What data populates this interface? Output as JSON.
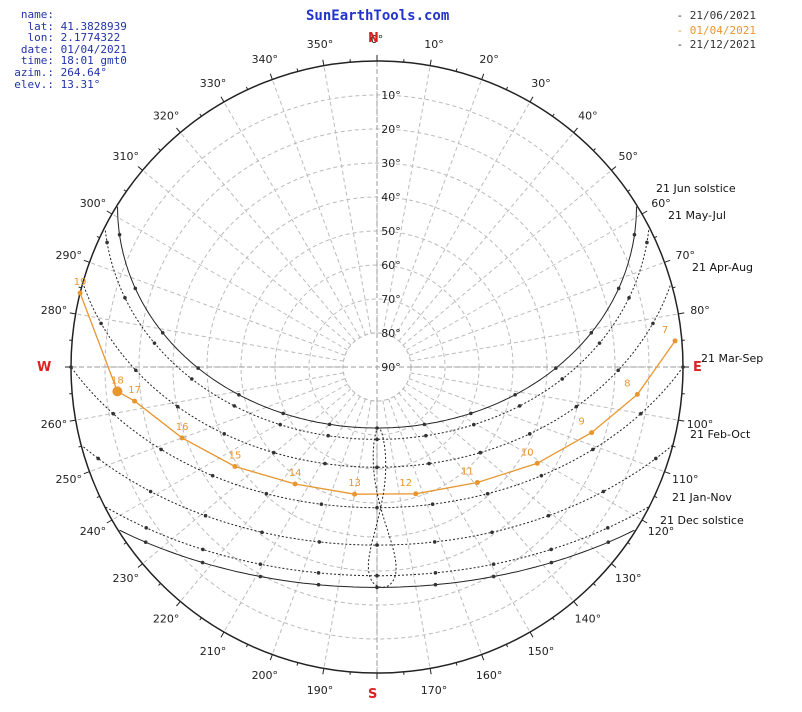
{
  "site_title": "SunEarthTools.com",
  "info": [
    {
      "key": "name:",
      "value": ""
    },
    {
      "key": "lat:",
      "value": "41.3828939"
    },
    {
      "key": "lon:",
      "value": "2.1774322"
    },
    {
      "key": "date:",
      "value": "01/04/2021"
    },
    {
      "key": "time:",
      "value": "18:01 gmt0"
    },
    {
      "key": "azim.:",
      "value": "264.64°"
    },
    {
      "key": "elev.:",
      "value": "13.31°"
    }
  ],
  "legend": [
    {
      "label": "- 21/06/2021",
      "color": "#333333"
    },
    {
      "label": "- 01/04/2021",
      "color": "#e8962e"
    },
    {
      "label": "- 21/12/2021",
      "color": "#333333"
    }
  ],
  "colors": {
    "accent": "#e8962e",
    "cardinal": "#dd2222",
    "grid": "#bbbbbb",
    "line": "#333333"
  },
  "chart_data": {
    "type": "line",
    "projection": "polar sun path (azimuth 0-360°, elevation 0-90°)",
    "cardinal_labels": {
      "N": "N",
      "E": "E",
      "S": "S",
      "W": "W"
    },
    "azimuth_ticks": [
      0,
      10,
      20,
      30,
      40,
      50,
      60,
      70,
      80,
      100,
      110,
      120,
      130,
      140,
      150,
      160,
      170,
      190,
      200,
      210,
      220,
      230,
      240,
      250,
      260,
      280,
      290,
      300,
      310,
      320,
      330,
      340,
      350
    ],
    "elevation_ticks": [
      10,
      20,
      30,
      40,
      50,
      60,
      70,
      80,
      90
    ],
    "day_labels": [
      "21 Jun  solstice",
      "21 May-Jul",
      "21 Apr-Aug",
      "21 Mar-Sep",
      "21 Feb-Oct",
      "21 Jan-Nov",
      "21 Dec  solstice"
    ],
    "series": [
      {
        "date": "21/06/2021",
        "decl": 23.44,
        "style": "solid"
      },
      {
        "date": "21 May-Jul",
        "decl": 20.1,
        "style": "dotted"
      },
      {
        "date": "21 Apr-Aug",
        "decl": 11.9,
        "style": "dotted"
      },
      {
        "date": "21 Mar-Sep",
        "decl": 0.0,
        "style": "dotted"
      },
      {
        "date": "21 Feb-Oct",
        "decl": -11.0,
        "style": "dotted"
      },
      {
        "date": "21 Jan-Nov",
        "decl": -20.0,
        "style": "dotted"
      },
      {
        "date": "21/12/2021",
        "decl": -23.44,
        "style": "solid"
      }
    ],
    "current_day": {
      "date": "01/04/2021",
      "hours": [
        7,
        8,
        9,
        10,
        11,
        12,
        13,
        14,
        15,
        16,
        17,
        18,
        19
      ],
      "points": [
        {
          "hour": 7,
          "azimuth": 85,
          "elevation": 2
        },
        {
          "hour": 8,
          "azimuth": 96,
          "elevation": 13
        },
        {
          "hour": 9,
          "azimuth": 107,
          "elevation": 24
        },
        {
          "hour": 10,
          "azimuth": 121,
          "elevation": 35
        },
        {
          "hour": 11,
          "azimuth": 139,
          "elevation": 45
        },
        {
          "hour": 12,
          "azimuth": 163,
          "elevation": 51
        },
        {
          "hour": 13,
          "azimuth": 190,
          "elevation": 52
        },
        {
          "hour": 14,
          "azimuth": 215,
          "elevation": 48
        },
        {
          "hour": 15,
          "azimuth": 235,
          "elevation": 39
        },
        {
          "hour": 16,
          "azimuth": 250,
          "elevation": 29
        },
        {
          "hour": 17,
          "azimuth": 262,
          "elevation": 18
        },
        {
          "hour": 18,
          "azimuth": 264.64,
          "elevation": 13.31
        },
        {
          "hour": 19,
          "azimuth": 284,
          "elevation": -3
        }
      ],
      "current_hour": 18
    }
  }
}
